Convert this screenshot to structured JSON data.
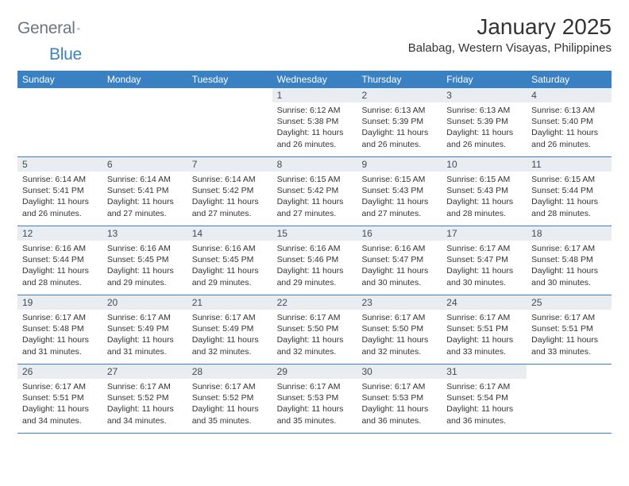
{
  "brand": {
    "text1": "General",
    "text2": "Blue"
  },
  "title": "January 2025",
  "location": "Balabag, Western Visayas, Philippines",
  "colors": {
    "header_bg": "#3a81c4",
    "daynum_bg": "#e9edf1",
    "rule": "#3a81c4",
    "text": "#333333"
  },
  "weekdays": [
    "Sunday",
    "Monday",
    "Tuesday",
    "Wednesday",
    "Thursday",
    "Friday",
    "Saturday"
  ],
  "weeks": [
    [
      {
        "n": "",
        "sr": "",
        "ss": "",
        "dl1": "",
        "dl2": ""
      },
      {
        "n": "",
        "sr": "",
        "ss": "",
        "dl1": "",
        "dl2": ""
      },
      {
        "n": "",
        "sr": "",
        "ss": "",
        "dl1": "",
        "dl2": ""
      },
      {
        "n": "1",
        "sr": "Sunrise: 6:12 AM",
        "ss": "Sunset: 5:38 PM",
        "dl1": "Daylight: 11 hours",
        "dl2": "and 26 minutes."
      },
      {
        "n": "2",
        "sr": "Sunrise: 6:13 AM",
        "ss": "Sunset: 5:39 PM",
        "dl1": "Daylight: 11 hours",
        "dl2": "and 26 minutes."
      },
      {
        "n": "3",
        "sr": "Sunrise: 6:13 AM",
        "ss": "Sunset: 5:39 PM",
        "dl1": "Daylight: 11 hours",
        "dl2": "and 26 minutes."
      },
      {
        "n": "4",
        "sr": "Sunrise: 6:13 AM",
        "ss": "Sunset: 5:40 PM",
        "dl1": "Daylight: 11 hours",
        "dl2": "and 26 minutes."
      }
    ],
    [
      {
        "n": "5",
        "sr": "Sunrise: 6:14 AM",
        "ss": "Sunset: 5:41 PM",
        "dl1": "Daylight: 11 hours",
        "dl2": "and 26 minutes."
      },
      {
        "n": "6",
        "sr": "Sunrise: 6:14 AM",
        "ss": "Sunset: 5:41 PM",
        "dl1": "Daylight: 11 hours",
        "dl2": "and 27 minutes."
      },
      {
        "n": "7",
        "sr": "Sunrise: 6:14 AM",
        "ss": "Sunset: 5:42 PM",
        "dl1": "Daylight: 11 hours",
        "dl2": "and 27 minutes."
      },
      {
        "n": "8",
        "sr": "Sunrise: 6:15 AM",
        "ss": "Sunset: 5:42 PM",
        "dl1": "Daylight: 11 hours",
        "dl2": "and 27 minutes."
      },
      {
        "n": "9",
        "sr": "Sunrise: 6:15 AM",
        "ss": "Sunset: 5:43 PM",
        "dl1": "Daylight: 11 hours",
        "dl2": "and 27 minutes."
      },
      {
        "n": "10",
        "sr": "Sunrise: 6:15 AM",
        "ss": "Sunset: 5:43 PM",
        "dl1": "Daylight: 11 hours",
        "dl2": "and 28 minutes."
      },
      {
        "n": "11",
        "sr": "Sunrise: 6:15 AM",
        "ss": "Sunset: 5:44 PM",
        "dl1": "Daylight: 11 hours",
        "dl2": "and 28 minutes."
      }
    ],
    [
      {
        "n": "12",
        "sr": "Sunrise: 6:16 AM",
        "ss": "Sunset: 5:44 PM",
        "dl1": "Daylight: 11 hours",
        "dl2": "and 28 minutes."
      },
      {
        "n": "13",
        "sr": "Sunrise: 6:16 AM",
        "ss": "Sunset: 5:45 PM",
        "dl1": "Daylight: 11 hours",
        "dl2": "and 29 minutes."
      },
      {
        "n": "14",
        "sr": "Sunrise: 6:16 AM",
        "ss": "Sunset: 5:45 PM",
        "dl1": "Daylight: 11 hours",
        "dl2": "and 29 minutes."
      },
      {
        "n": "15",
        "sr": "Sunrise: 6:16 AM",
        "ss": "Sunset: 5:46 PM",
        "dl1": "Daylight: 11 hours",
        "dl2": "and 29 minutes."
      },
      {
        "n": "16",
        "sr": "Sunrise: 6:16 AM",
        "ss": "Sunset: 5:47 PM",
        "dl1": "Daylight: 11 hours",
        "dl2": "and 30 minutes."
      },
      {
        "n": "17",
        "sr": "Sunrise: 6:17 AM",
        "ss": "Sunset: 5:47 PM",
        "dl1": "Daylight: 11 hours",
        "dl2": "and 30 minutes."
      },
      {
        "n": "18",
        "sr": "Sunrise: 6:17 AM",
        "ss": "Sunset: 5:48 PM",
        "dl1": "Daylight: 11 hours",
        "dl2": "and 30 minutes."
      }
    ],
    [
      {
        "n": "19",
        "sr": "Sunrise: 6:17 AM",
        "ss": "Sunset: 5:48 PM",
        "dl1": "Daylight: 11 hours",
        "dl2": "and 31 minutes."
      },
      {
        "n": "20",
        "sr": "Sunrise: 6:17 AM",
        "ss": "Sunset: 5:49 PM",
        "dl1": "Daylight: 11 hours",
        "dl2": "and 31 minutes."
      },
      {
        "n": "21",
        "sr": "Sunrise: 6:17 AM",
        "ss": "Sunset: 5:49 PM",
        "dl1": "Daylight: 11 hours",
        "dl2": "and 32 minutes."
      },
      {
        "n": "22",
        "sr": "Sunrise: 6:17 AM",
        "ss": "Sunset: 5:50 PM",
        "dl1": "Daylight: 11 hours",
        "dl2": "and 32 minutes."
      },
      {
        "n": "23",
        "sr": "Sunrise: 6:17 AM",
        "ss": "Sunset: 5:50 PM",
        "dl1": "Daylight: 11 hours",
        "dl2": "and 32 minutes."
      },
      {
        "n": "24",
        "sr": "Sunrise: 6:17 AM",
        "ss": "Sunset: 5:51 PM",
        "dl1": "Daylight: 11 hours",
        "dl2": "and 33 minutes."
      },
      {
        "n": "25",
        "sr": "Sunrise: 6:17 AM",
        "ss": "Sunset: 5:51 PM",
        "dl1": "Daylight: 11 hours",
        "dl2": "and 33 minutes."
      }
    ],
    [
      {
        "n": "26",
        "sr": "Sunrise: 6:17 AM",
        "ss": "Sunset: 5:51 PM",
        "dl1": "Daylight: 11 hours",
        "dl2": "and 34 minutes."
      },
      {
        "n": "27",
        "sr": "Sunrise: 6:17 AM",
        "ss": "Sunset: 5:52 PM",
        "dl1": "Daylight: 11 hours",
        "dl2": "and 34 minutes."
      },
      {
        "n": "28",
        "sr": "Sunrise: 6:17 AM",
        "ss": "Sunset: 5:52 PM",
        "dl1": "Daylight: 11 hours",
        "dl2": "and 35 minutes."
      },
      {
        "n": "29",
        "sr": "Sunrise: 6:17 AM",
        "ss": "Sunset: 5:53 PM",
        "dl1": "Daylight: 11 hours",
        "dl2": "and 35 minutes."
      },
      {
        "n": "30",
        "sr": "Sunrise: 6:17 AM",
        "ss": "Sunset: 5:53 PM",
        "dl1": "Daylight: 11 hours",
        "dl2": "and 36 minutes."
      },
      {
        "n": "31",
        "sr": "Sunrise: 6:17 AM",
        "ss": "Sunset: 5:54 PM",
        "dl1": "Daylight: 11 hours",
        "dl2": "and 36 minutes."
      },
      {
        "n": "",
        "sr": "",
        "ss": "",
        "dl1": "",
        "dl2": ""
      }
    ]
  ]
}
